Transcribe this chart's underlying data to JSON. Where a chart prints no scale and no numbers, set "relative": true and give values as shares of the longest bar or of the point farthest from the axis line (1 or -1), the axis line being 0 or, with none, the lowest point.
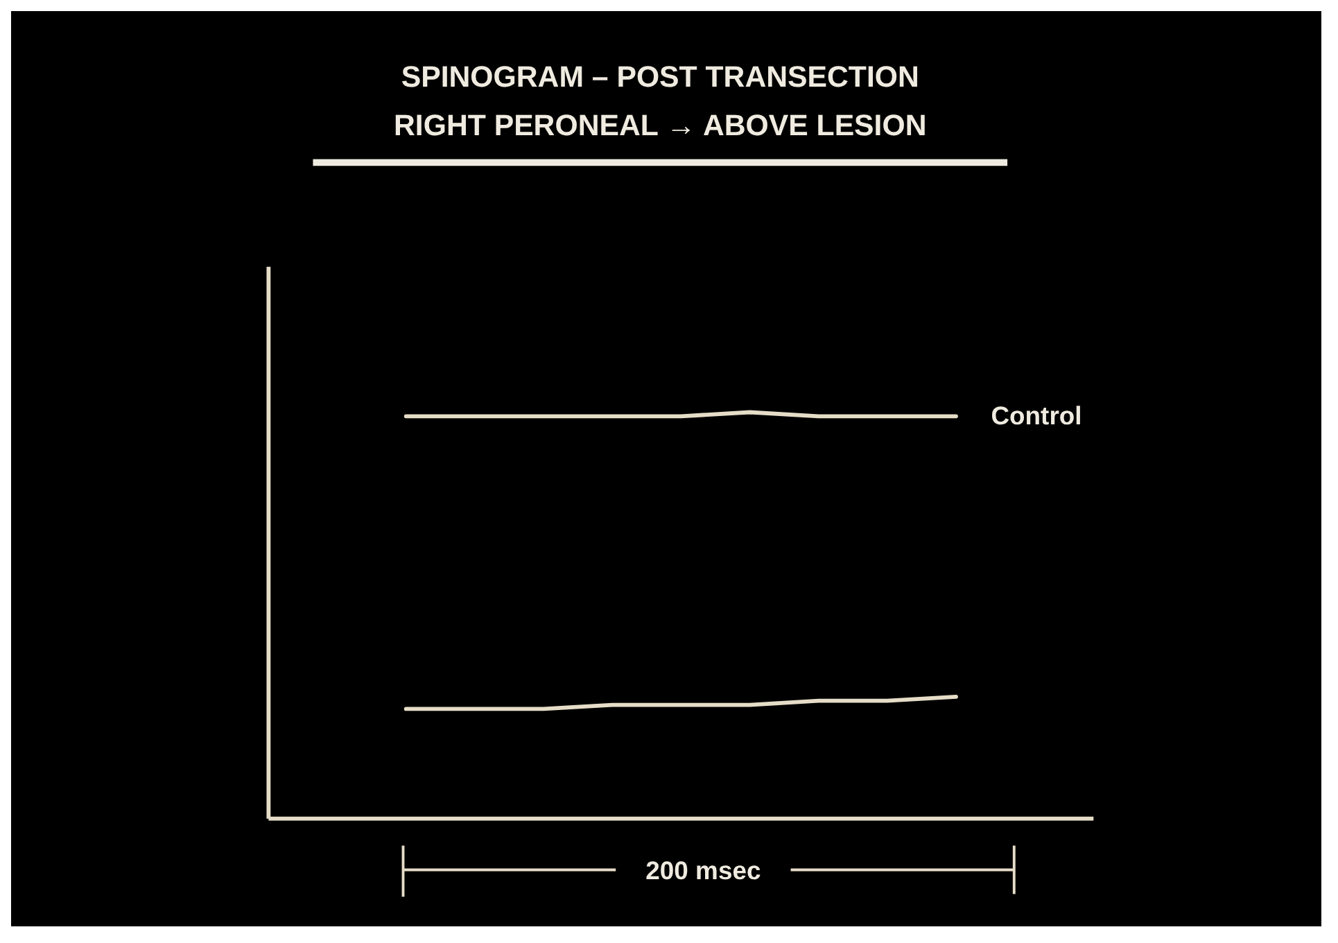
{
  "chart_data": {
    "type": "line",
    "title": "SPINOGRAM – POST TRANSECTION",
    "subtitle": "RIGHT PERONEAL → ABOVE LESION",
    "relative": true,
    "categories": [
      null,
      null,
      null,
      null,
      null,
      null,
      null,
      null,
      null,
      null,
      null,
      null,
      null
    ],
    "series": [
      {
        "name": "Control",
        "color": "#e6ddc8",
        "values": [
          null,
          null,
          0.99,
          0.99,
          0.99,
          0.99,
          0.99,
          1,
          0.99,
          0.99,
          0.99,
          null,
          null
        ]
      },
      {
        "color": "#e6ddc8",
        "values": [
          null,
          null,
          0.27,
          0.27,
          0.27,
          0.28,
          0.28,
          0.28,
          0.29,
          0.29,
          0.3,
          null,
          null
        ]
      }
    ],
    "annotations": [
      "200 msec"
    ]
  }
}
